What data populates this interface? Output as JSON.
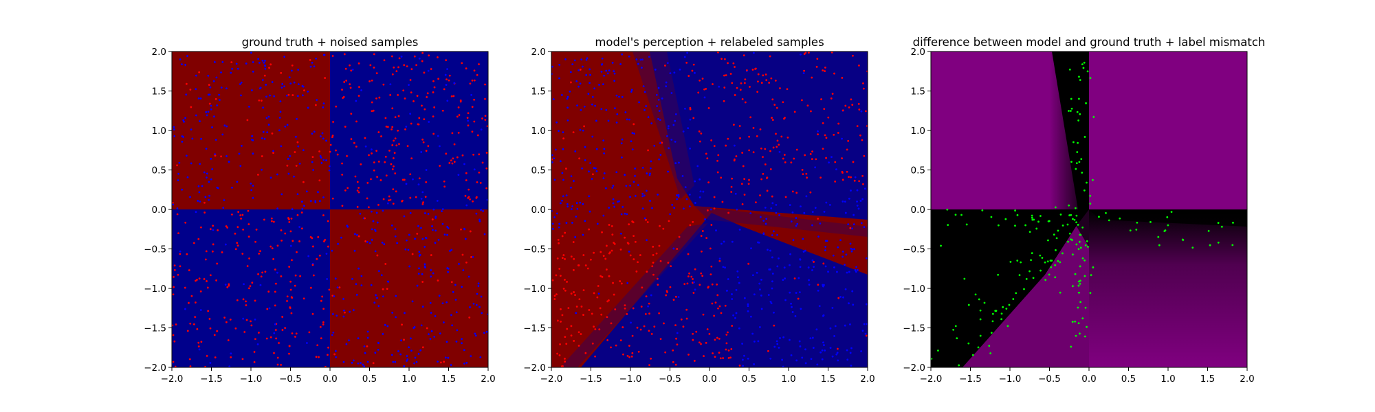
{
  "chart_data": [
    {
      "type": "heatmap",
      "title": "ground truth + noised samples",
      "xlim": [
        -2.0,
        2.0
      ],
      "ylim": [
        -2.0,
        2.0
      ],
      "xticks": [
        "−2.0",
        "−1.5",
        "−1.0",
        "−0.5",
        "0.0",
        "0.5",
        "1.0",
        "1.5",
        "2.0"
      ],
      "yticks": [
        "−2.0",
        "−1.5",
        "−1.0",
        "−0.5",
        "0.0",
        "0.5",
        "1.0",
        "1.5",
        "2.0"
      ],
      "background": "sign(x*y): x*y<0 red region, x*y>0 blue region",
      "colors": {
        "red": "#800000",
        "blue": "#00008b",
        "point_red": "#ff0000",
        "point_blue": "#0000ff"
      },
      "points": {
        "count": 1000,
        "marker": "dot",
        "colors": [
          "red",
          "blue"
        ]
      }
    },
    {
      "type": "heatmap",
      "title": "model's perception + relabeled samples",
      "xlim": [
        -2.0,
        2.0
      ],
      "ylim": [
        -2.0,
        2.0
      ],
      "xticks": [
        "−2.0",
        "−1.5",
        "−1.0",
        "−0.5",
        "0.0",
        "0.5",
        "1.0",
        "1.5",
        "2.0"
      ],
      "yticks": [
        "−2.0",
        "−1.5",
        "−1.0",
        "−0.5",
        "0.0",
        "0.5",
        "1.0",
        "1.5",
        "2.0"
      ],
      "background": "smooth red/blue decision regions",
      "colors": {
        "red": "#800000",
        "blue": "#00008b",
        "point_red": "#ff0000",
        "point_blue": "#0000ff"
      },
      "points": {
        "count": 1000,
        "marker": "dot",
        "colors": [
          "red",
          "blue"
        ]
      }
    },
    {
      "type": "heatmap",
      "title": "difference between model and ground truth + label mismatch",
      "xlim": [
        -2.0,
        2.0
      ],
      "ylim": [
        -2.0,
        2.0
      ],
      "xticks": [
        "−2.0",
        "−1.5",
        "−1.0",
        "−0.5",
        "0.0",
        "0.5",
        "1.0",
        "1.5",
        "2.0"
      ],
      "yticks": [
        "−2.0",
        "−1.5",
        "−1.0",
        "−0.5",
        "0.0",
        "0.5",
        "1.0",
        "1.5",
        "2.0"
      ],
      "background": "magenta where model agrees, black where it differs",
      "colors": {
        "agree": "#800080",
        "differ": "#000000",
        "point": "#00ff00"
      },
      "points": {
        "count": 200,
        "marker": "dot",
        "colors": [
          "green"
        ]
      }
    }
  ]
}
